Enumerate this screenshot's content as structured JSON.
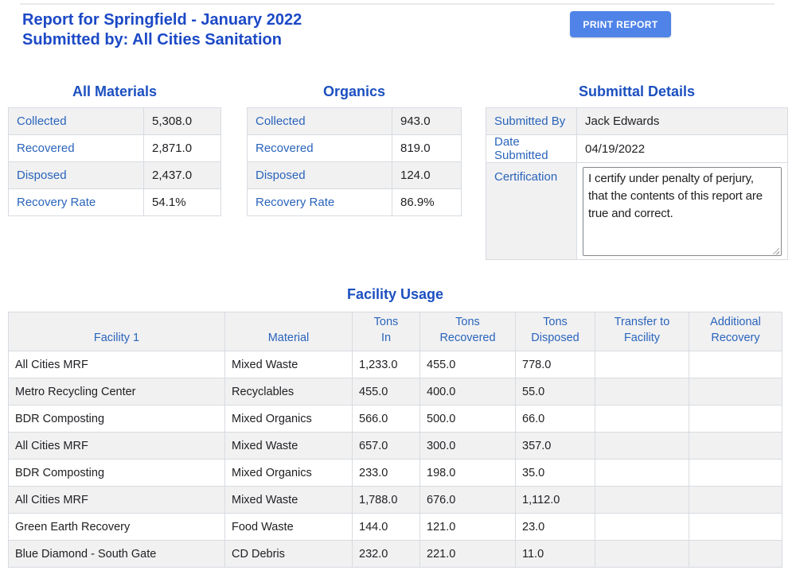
{
  "header": {
    "title_line1": "Report for Springfield - January 2022",
    "title_line2": "Submitted by: All Cities Sanitation",
    "print_button_label": "PRINT REPORT"
  },
  "all_materials": {
    "title": "All Materials",
    "rows": [
      {
        "label": "Collected",
        "value": "5,308.0"
      },
      {
        "label": "Recovered",
        "value": "2,871.0"
      },
      {
        "label": "Disposed",
        "value": "2,437.0"
      },
      {
        "label": "Recovery Rate",
        "value": "54.1%"
      }
    ]
  },
  "organics": {
    "title": "Organics",
    "rows": [
      {
        "label": "Collected",
        "value": "943.0"
      },
      {
        "label": "Recovered",
        "value": "819.0"
      },
      {
        "label": "Disposed",
        "value": "124.0"
      },
      {
        "label": "Recovery Rate",
        "value": "86.9%"
      }
    ]
  },
  "submittal": {
    "title": "Submittal Details",
    "submitted_by_label": "Submitted By",
    "submitted_by_value": "Jack Edwards",
    "date_submitted_label": "Date Submitted",
    "date_submitted_value": "04/19/2022",
    "certification_label": "Certification",
    "certification_text": "I certify under penalty of perjury, that the contents of this report are true and correct."
  },
  "facility_usage": {
    "title": "Facility Usage",
    "columns": [
      "Facility 1",
      "Material",
      "Tons In",
      "Tons Recovered",
      "Tons Disposed",
      "Transfer to Facility",
      "Additional Recovery"
    ],
    "rows": [
      [
        "All Cities MRF",
        "Mixed Waste",
        "1,233.0",
        "455.0",
        "778.0",
        "",
        ""
      ],
      [
        "Metro Recycling Center",
        "Recyclables",
        "455.0",
        "400.0",
        "55.0",
        "",
        ""
      ],
      [
        "BDR Composting",
        "Mixed Organics",
        "566.0",
        "500.0",
        "66.0",
        "",
        ""
      ],
      [
        "All Cities MRF",
        "Mixed Waste",
        "657.0",
        "300.0",
        "357.0",
        "",
        ""
      ],
      [
        "BDR Composting",
        "Mixed Organics",
        "233.0",
        "198.0",
        "35.0",
        "",
        ""
      ],
      [
        "All Cities MRF",
        "Mixed Waste",
        "1,788.0",
        "676.0",
        "1,112.0",
        "",
        ""
      ],
      [
        "Green Earth Recovery",
        "Food Waste",
        "144.0",
        "121.0",
        "23.0",
        "",
        ""
      ],
      [
        "Blue Diamond - South Gate",
        "CD Debris",
        "232.0",
        "221.0",
        "11.0",
        "",
        ""
      ]
    ]
  },
  "colors": {
    "title_blue": "#1c49c6",
    "section_title_blue": "#1c50c0",
    "label_blue": "#2a64ba",
    "button_blue": "#4f83e8",
    "row_stripe": "#f1f1f2",
    "table_border": "#d7dbe0"
  }
}
